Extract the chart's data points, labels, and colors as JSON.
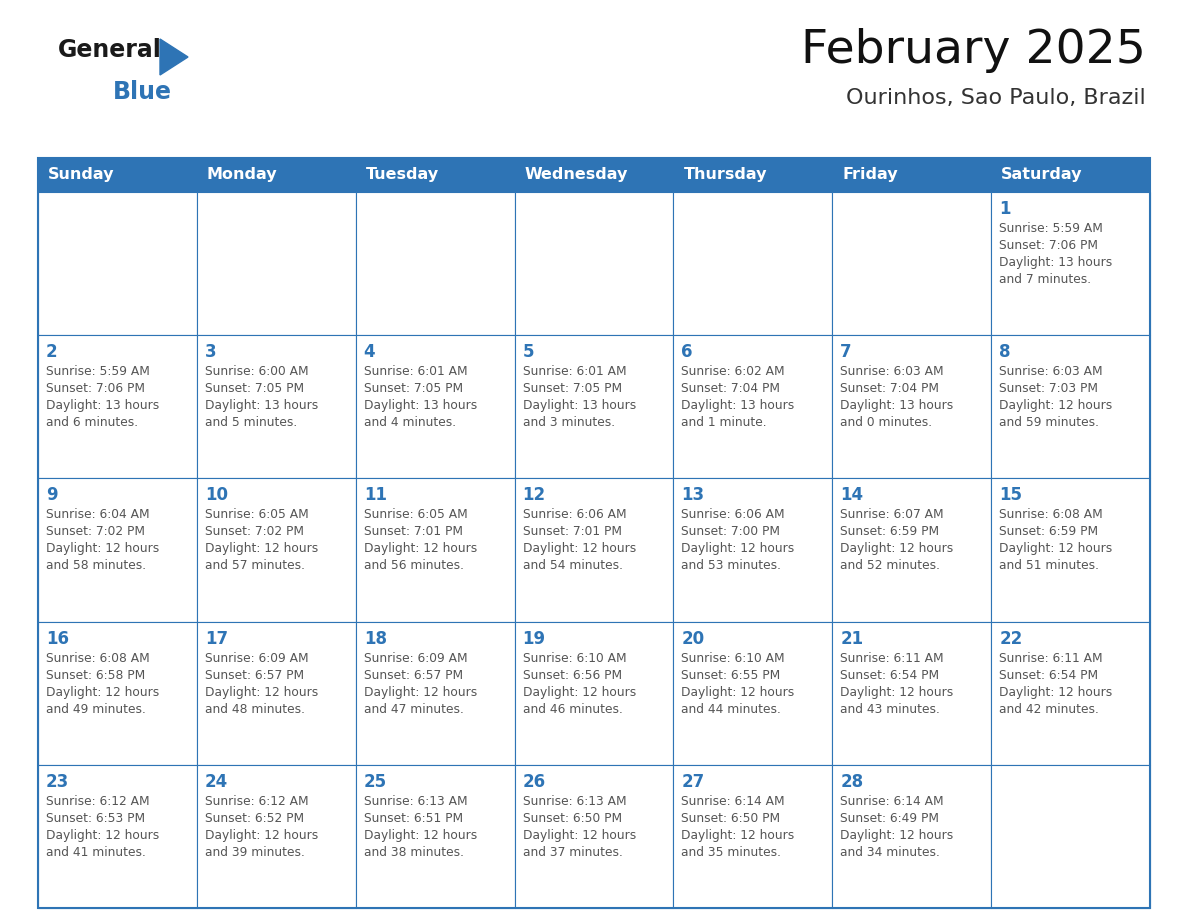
{
  "title": "February 2025",
  "subtitle": "Ourinhos, Sao Paulo, Brazil",
  "header_bg_color": "#2E74B5",
  "header_text_color": "#FFFFFF",
  "cell_bg_color": "#FFFFFF",
  "cell_border_color": "#2E74B5",
  "day_number_color": "#2E74B5",
  "info_text_color": "#555555",
  "title_color": "#111111",
  "subtitle_color": "#333333",
  "days_of_week": [
    "Sunday",
    "Monday",
    "Tuesday",
    "Wednesday",
    "Thursday",
    "Friday",
    "Saturday"
  ],
  "weeks": [
    [
      {
        "day": null,
        "info": ""
      },
      {
        "day": null,
        "info": ""
      },
      {
        "day": null,
        "info": ""
      },
      {
        "day": null,
        "info": ""
      },
      {
        "day": null,
        "info": ""
      },
      {
        "day": null,
        "info": ""
      },
      {
        "day": 1,
        "info": "Sunrise: 5:59 AM\nSunset: 7:06 PM\nDaylight: 13 hours\nand 7 minutes."
      }
    ],
    [
      {
        "day": 2,
        "info": "Sunrise: 5:59 AM\nSunset: 7:06 PM\nDaylight: 13 hours\nand 6 minutes."
      },
      {
        "day": 3,
        "info": "Sunrise: 6:00 AM\nSunset: 7:05 PM\nDaylight: 13 hours\nand 5 minutes."
      },
      {
        "day": 4,
        "info": "Sunrise: 6:01 AM\nSunset: 7:05 PM\nDaylight: 13 hours\nand 4 minutes."
      },
      {
        "day": 5,
        "info": "Sunrise: 6:01 AM\nSunset: 7:05 PM\nDaylight: 13 hours\nand 3 minutes."
      },
      {
        "day": 6,
        "info": "Sunrise: 6:02 AM\nSunset: 7:04 PM\nDaylight: 13 hours\nand 1 minute."
      },
      {
        "day": 7,
        "info": "Sunrise: 6:03 AM\nSunset: 7:04 PM\nDaylight: 13 hours\nand 0 minutes."
      },
      {
        "day": 8,
        "info": "Sunrise: 6:03 AM\nSunset: 7:03 PM\nDaylight: 12 hours\nand 59 minutes."
      }
    ],
    [
      {
        "day": 9,
        "info": "Sunrise: 6:04 AM\nSunset: 7:02 PM\nDaylight: 12 hours\nand 58 minutes."
      },
      {
        "day": 10,
        "info": "Sunrise: 6:05 AM\nSunset: 7:02 PM\nDaylight: 12 hours\nand 57 minutes."
      },
      {
        "day": 11,
        "info": "Sunrise: 6:05 AM\nSunset: 7:01 PM\nDaylight: 12 hours\nand 56 minutes."
      },
      {
        "day": 12,
        "info": "Sunrise: 6:06 AM\nSunset: 7:01 PM\nDaylight: 12 hours\nand 54 minutes."
      },
      {
        "day": 13,
        "info": "Sunrise: 6:06 AM\nSunset: 7:00 PM\nDaylight: 12 hours\nand 53 minutes."
      },
      {
        "day": 14,
        "info": "Sunrise: 6:07 AM\nSunset: 6:59 PM\nDaylight: 12 hours\nand 52 minutes."
      },
      {
        "day": 15,
        "info": "Sunrise: 6:08 AM\nSunset: 6:59 PM\nDaylight: 12 hours\nand 51 minutes."
      }
    ],
    [
      {
        "day": 16,
        "info": "Sunrise: 6:08 AM\nSunset: 6:58 PM\nDaylight: 12 hours\nand 49 minutes."
      },
      {
        "day": 17,
        "info": "Sunrise: 6:09 AM\nSunset: 6:57 PM\nDaylight: 12 hours\nand 48 minutes."
      },
      {
        "day": 18,
        "info": "Sunrise: 6:09 AM\nSunset: 6:57 PM\nDaylight: 12 hours\nand 47 minutes."
      },
      {
        "day": 19,
        "info": "Sunrise: 6:10 AM\nSunset: 6:56 PM\nDaylight: 12 hours\nand 46 minutes."
      },
      {
        "day": 20,
        "info": "Sunrise: 6:10 AM\nSunset: 6:55 PM\nDaylight: 12 hours\nand 44 minutes."
      },
      {
        "day": 21,
        "info": "Sunrise: 6:11 AM\nSunset: 6:54 PM\nDaylight: 12 hours\nand 43 minutes."
      },
      {
        "day": 22,
        "info": "Sunrise: 6:11 AM\nSunset: 6:54 PM\nDaylight: 12 hours\nand 42 minutes."
      }
    ],
    [
      {
        "day": 23,
        "info": "Sunrise: 6:12 AM\nSunset: 6:53 PM\nDaylight: 12 hours\nand 41 minutes."
      },
      {
        "day": 24,
        "info": "Sunrise: 6:12 AM\nSunset: 6:52 PM\nDaylight: 12 hours\nand 39 minutes."
      },
      {
        "day": 25,
        "info": "Sunrise: 6:13 AM\nSunset: 6:51 PM\nDaylight: 12 hours\nand 38 minutes."
      },
      {
        "day": 26,
        "info": "Sunrise: 6:13 AM\nSunset: 6:50 PM\nDaylight: 12 hours\nand 37 minutes."
      },
      {
        "day": 27,
        "info": "Sunrise: 6:14 AM\nSunset: 6:50 PM\nDaylight: 12 hours\nand 35 minutes."
      },
      {
        "day": 28,
        "info": "Sunrise: 6:14 AM\nSunset: 6:49 PM\nDaylight: 12 hours\nand 34 minutes."
      },
      {
        "day": null,
        "info": ""
      }
    ]
  ],
  "logo_text_general": "General",
  "logo_text_blue": "Blue",
  "logo_triangle_color": "#2E74B5",
  "figsize": [
    11.88,
    9.18
  ],
  "dpi": 100
}
